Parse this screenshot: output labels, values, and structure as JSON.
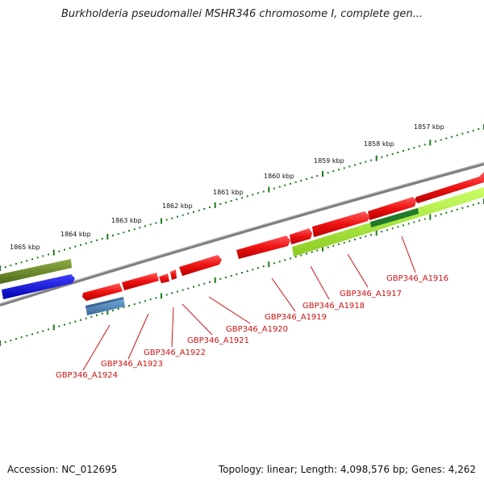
{
  "title": "Burkholderia pseudomallei MSHR346 chromosome I, complete gen...",
  "footer": {
    "accession": "Accession: NC_012695",
    "summary": "Topology: linear; Length: 4,098,576 bp; Genes: 4,262"
  },
  "ruler_labels": [
    "1857 kbp",
    "1858 kbp",
    "1859 kbp",
    "1860 kbp",
    "1861 kbp",
    "1862 kbp",
    "1863 kbp",
    "1864 kbp",
    "1865 kbp"
  ],
  "gene_labels": [
    "GBP346_A1916",
    "GBP346_A1917",
    "GBP346_A1918",
    "GBP346_A1919",
    "GBP346_A1920",
    "GBP346_A1921",
    "GBP346_A1922",
    "GBP346_A1923",
    "GBP346_A1924"
  ],
  "colors": {
    "gene_red": "#ee1111",
    "label_red": "#cc1111",
    "olive": "#6b8e23",
    "blue": "#1010ee",
    "light_green": "#aaee33",
    "dark_green": "#1f7a2a",
    "steel_blue": "#4a82b8",
    "ruler_green": "#1a7a1a",
    "backbone": "#808080"
  }
}
